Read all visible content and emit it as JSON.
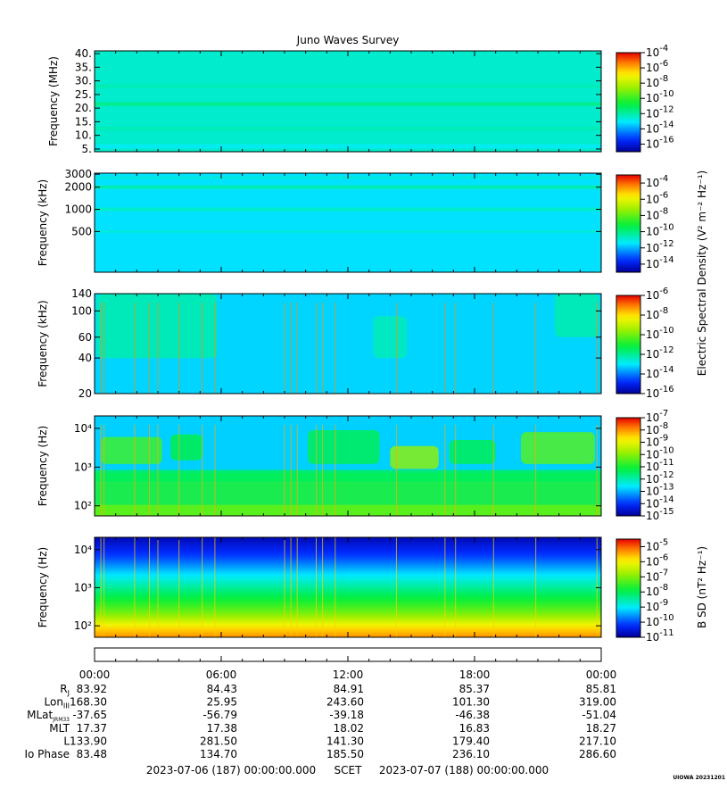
{
  "chart_data": {
    "type": "heatmap",
    "title": "Juno Waves Survey",
    "panels": [
      {
        "id": "efield-hfr-mhz",
        "ylabel": "Frequency (MHz)",
        "yscale": "linear",
        "ylim": [
          4,
          41
        ],
        "yticks": [
          {
            "v": 5,
            "label": "5."
          },
          {
            "v": 10,
            "label": "10."
          },
          {
            "v": 15,
            "label": "15."
          },
          {
            "v": 20,
            "label": "20."
          },
          {
            "v": 25,
            "label": "25."
          },
          {
            "v": 30,
            "label": "30."
          },
          {
            "v": 35,
            "label": "35."
          },
          {
            "v": 40,
            "label": "40."
          }
        ],
        "colorbar": {
          "scale": "log",
          "exp_min": -17,
          "exp_max": -4,
          "label_exps": [
            -4,
            -6,
            -8,
            -10,
            -12,
            -14,
            -16
          ]
        },
        "background_level_exp": -12.5,
        "bands": [
          {
            "center": 21.5,
            "width": 1.4,
            "level_exp": -11.6
          },
          {
            "center": 12.5,
            "width": 1.5,
            "level_exp": -12.2
          },
          {
            "center": 28.0,
            "width": 1.5,
            "level_exp": -12.2
          },
          {
            "center": 6.0,
            "width": 1.5,
            "level_exp": -13.0
          }
        ],
        "bursts": []
      },
      {
        "id": "efield-hfr-khz",
        "ylabel": "Frequency (kHz)",
        "yscale": "log",
        "ylim": [
          140,
          3100
        ],
        "yticks": [
          {
            "v": 500,
            "label": "500"
          },
          {
            "v": 1000,
            "label": "1000"
          },
          {
            "v": 2000,
            "label": "2000"
          },
          {
            "v": 3000,
            "label": "3000"
          }
        ],
        "colorbar": {
          "scale": "log",
          "exp_min": -15,
          "exp_max": -3,
          "label_exps": [
            -4,
            -6,
            -8,
            -10,
            -12,
            -14
          ]
        },
        "background_level_exp": -11.5,
        "bands": [
          {
            "center": 2000,
            "width": 0.05,
            "level_exp": -10.4
          },
          {
            "center": 2700,
            "width": 0.03,
            "level_exp": -10.9
          },
          {
            "center": 1000,
            "width": 0.05,
            "level_exp": -10.7
          },
          {
            "center": 500,
            "width": 0.04,
            "level_exp": -11.0
          }
        ],
        "bursts": []
      },
      {
        "id": "efield-lfr-khz",
        "ylabel": "Frequency (kHz)",
        "yscale": "log",
        "ylim": [
          20,
          140
        ],
        "yticks": [
          {
            "v": 20,
            "label": "20"
          },
          {
            "v": 40,
            "label": "40"
          },
          {
            "v": 60,
            "label": "60"
          },
          {
            "v": 100,
            "label": "100"
          },
          {
            "v": 140,
            "label": "140"
          }
        ],
        "colorbar": {
          "scale": "log",
          "exp_min": -16,
          "exp_max": -6,
          "label_exps": [
            -6,
            -8,
            -10,
            -12,
            -14,
            -16
          ]
        },
        "background_level_exp": -13.2,
        "bands": [],
        "bursts": [
          {
            "t0": 0.1,
            "t1": 5.8,
            "f0": 40,
            "f1": 140,
            "level_exp": -12.2
          },
          {
            "t0": 13.2,
            "t1": 14.8,
            "f0": 40,
            "f1": 90,
            "level_exp": -12.3
          },
          {
            "t0": 21.8,
            "t1": 23.9,
            "f0": 60,
            "f1": 140,
            "level_exp": -12.2
          }
        ]
      },
      {
        "id": "efield-lfr-hz",
        "ylabel": "Frequency (Hz)",
        "yscale": "log",
        "ylim": [
          55,
          21000
        ],
        "yticks": [
          {
            "v": 100,
            "label": "10²"
          },
          {
            "v": 1000,
            "label": "10³"
          },
          {
            "v": 10000,
            "label": "10⁴"
          }
        ],
        "colorbar": {
          "scale": "log",
          "exp_min": -15,
          "exp_max": -7,
          "label_exps": [
            -7,
            -8,
            -9,
            -10,
            -11,
            -12,
            -13,
            -14,
            -15
          ]
        },
        "background_level_exp": -12.8,
        "bands": [
          {
            "center": 200,
            "width": 1.1,
            "level_exp": -10.9
          },
          {
            "center": 600,
            "width": 0.3,
            "level_exp": -11.4
          },
          {
            "center": 75,
            "width": 0.3,
            "level_exp": -10.3
          }
        ],
        "bursts": [
          {
            "t0": 0.3,
            "t1": 3.2,
            "f0": 1200,
            "f1": 6000,
            "level_exp": -10.6
          },
          {
            "t0": 3.6,
            "t1": 5.1,
            "f0": 1500,
            "f1": 7000,
            "level_exp": -11.2
          },
          {
            "t0": 10.1,
            "t1": 13.5,
            "f0": 1200,
            "f1": 9000,
            "level_exp": -11.3
          },
          {
            "t0": 14.0,
            "t1": 16.3,
            "f0": 900,
            "f1": 3500,
            "level_exp": -9.9
          },
          {
            "t0": 16.8,
            "t1": 19.0,
            "f0": 1200,
            "f1": 5000,
            "level_exp": -11.3
          },
          {
            "t0": 20.2,
            "t1": 23.7,
            "f0": 1200,
            "f1": 8000,
            "level_exp": -10.4
          }
        ]
      },
      {
        "id": "bfield",
        "ylabel": "Frequency (Hz)",
        "yscale": "log",
        "ylim": [
          50,
          21000
        ],
        "yticks": [
          {
            "v": 100,
            "label": "10²"
          },
          {
            "v": 1000,
            "label": "10³"
          },
          {
            "v": 10000,
            "label": "10⁴"
          }
        ],
        "colorbar": {
          "scale": "log",
          "exp_min": -11,
          "exp_max": -4.5,
          "label_exps": [
            -5,
            -6,
            -7,
            -8,
            -9,
            -10,
            -11
          ]
        },
        "gradient_exps": [
          {
            "f": 50,
            "level_exp": -5.3
          },
          {
            "f": 90,
            "level_exp": -5.8
          },
          {
            "f": 200,
            "level_exp": -7.0
          },
          {
            "f": 600,
            "level_exp": -8.0
          },
          {
            "f": 2000,
            "level_exp": -9.0
          },
          {
            "f": 6000,
            "level_exp": -10.0
          },
          {
            "f": 21000,
            "level_exp": -10.8
          }
        ],
        "bands": [],
        "bursts": []
      }
    ],
    "colorbar_labels": {
      "efield": "Electric Spectral Density (V² m⁻² Hz⁻¹)",
      "bfield": "B SD (nT² Hz⁻¹)"
    },
    "x": {
      "ticks": [
        "00:00",
        "06:00",
        "12:00",
        "18:00",
        "00:00"
      ],
      "hours": [
        0,
        6,
        12,
        18,
        24
      ],
      "spikes_hours": [
        0.3,
        0.45,
        1.9,
        2.6,
        3.0,
        4.0,
        5.1,
        5.7,
        9.0,
        9.3,
        9.6,
        10.5,
        10.8,
        11.4,
        14.3,
        16.6,
        17.1,
        18.9,
        20.9,
        23.8
      ]
    },
    "ephemeris": {
      "rows": [
        {
          "label": "R",
          "sub": "J",
          "values": [
            "83.92",
            "84.43",
            "84.91",
            "85.37",
            "85.81"
          ]
        },
        {
          "label": "Lon",
          "sub": "III",
          "values": [
            "168.30",
            "25.95",
            "243.60",
            "101.30",
            "319.00"
          ]
        },
        {
          "label": "MLat",
          "sub": "JRM33",
          "values": [
            "-37.65",
            "-56.79",
            "-39.18",
            "-46.38",
            "-51.04"
          ]
        },
        {
          "label": "MLT",
          "sub": "",
          "values": [
            "17.37",
            "17.38",
            "18.02",
            "16.83",
            "18.27"
          ]
        },
        {
          "label": "L",
          "sub": "",
          "values": [
            "133.90",
            "281.50",
            "141.30",
            "179.40",
            "217.10"
          ]
        },
        {
          "label": "Io Phase",
          "sub": "",
          "values": [
            "83.48",
            "134.70",
            "185.50",
            "236.10",
            "286.60"
          ]
        }
      ]
    },
    "footer": {
      "start": "2023-07-06 (187) 00:00:00.000",
      "scet": "SCET",
      "end": "2023-07-07 (188) 00:00:00.000"
    },
    "credit": "UIOWA 20231201"
  }
}
